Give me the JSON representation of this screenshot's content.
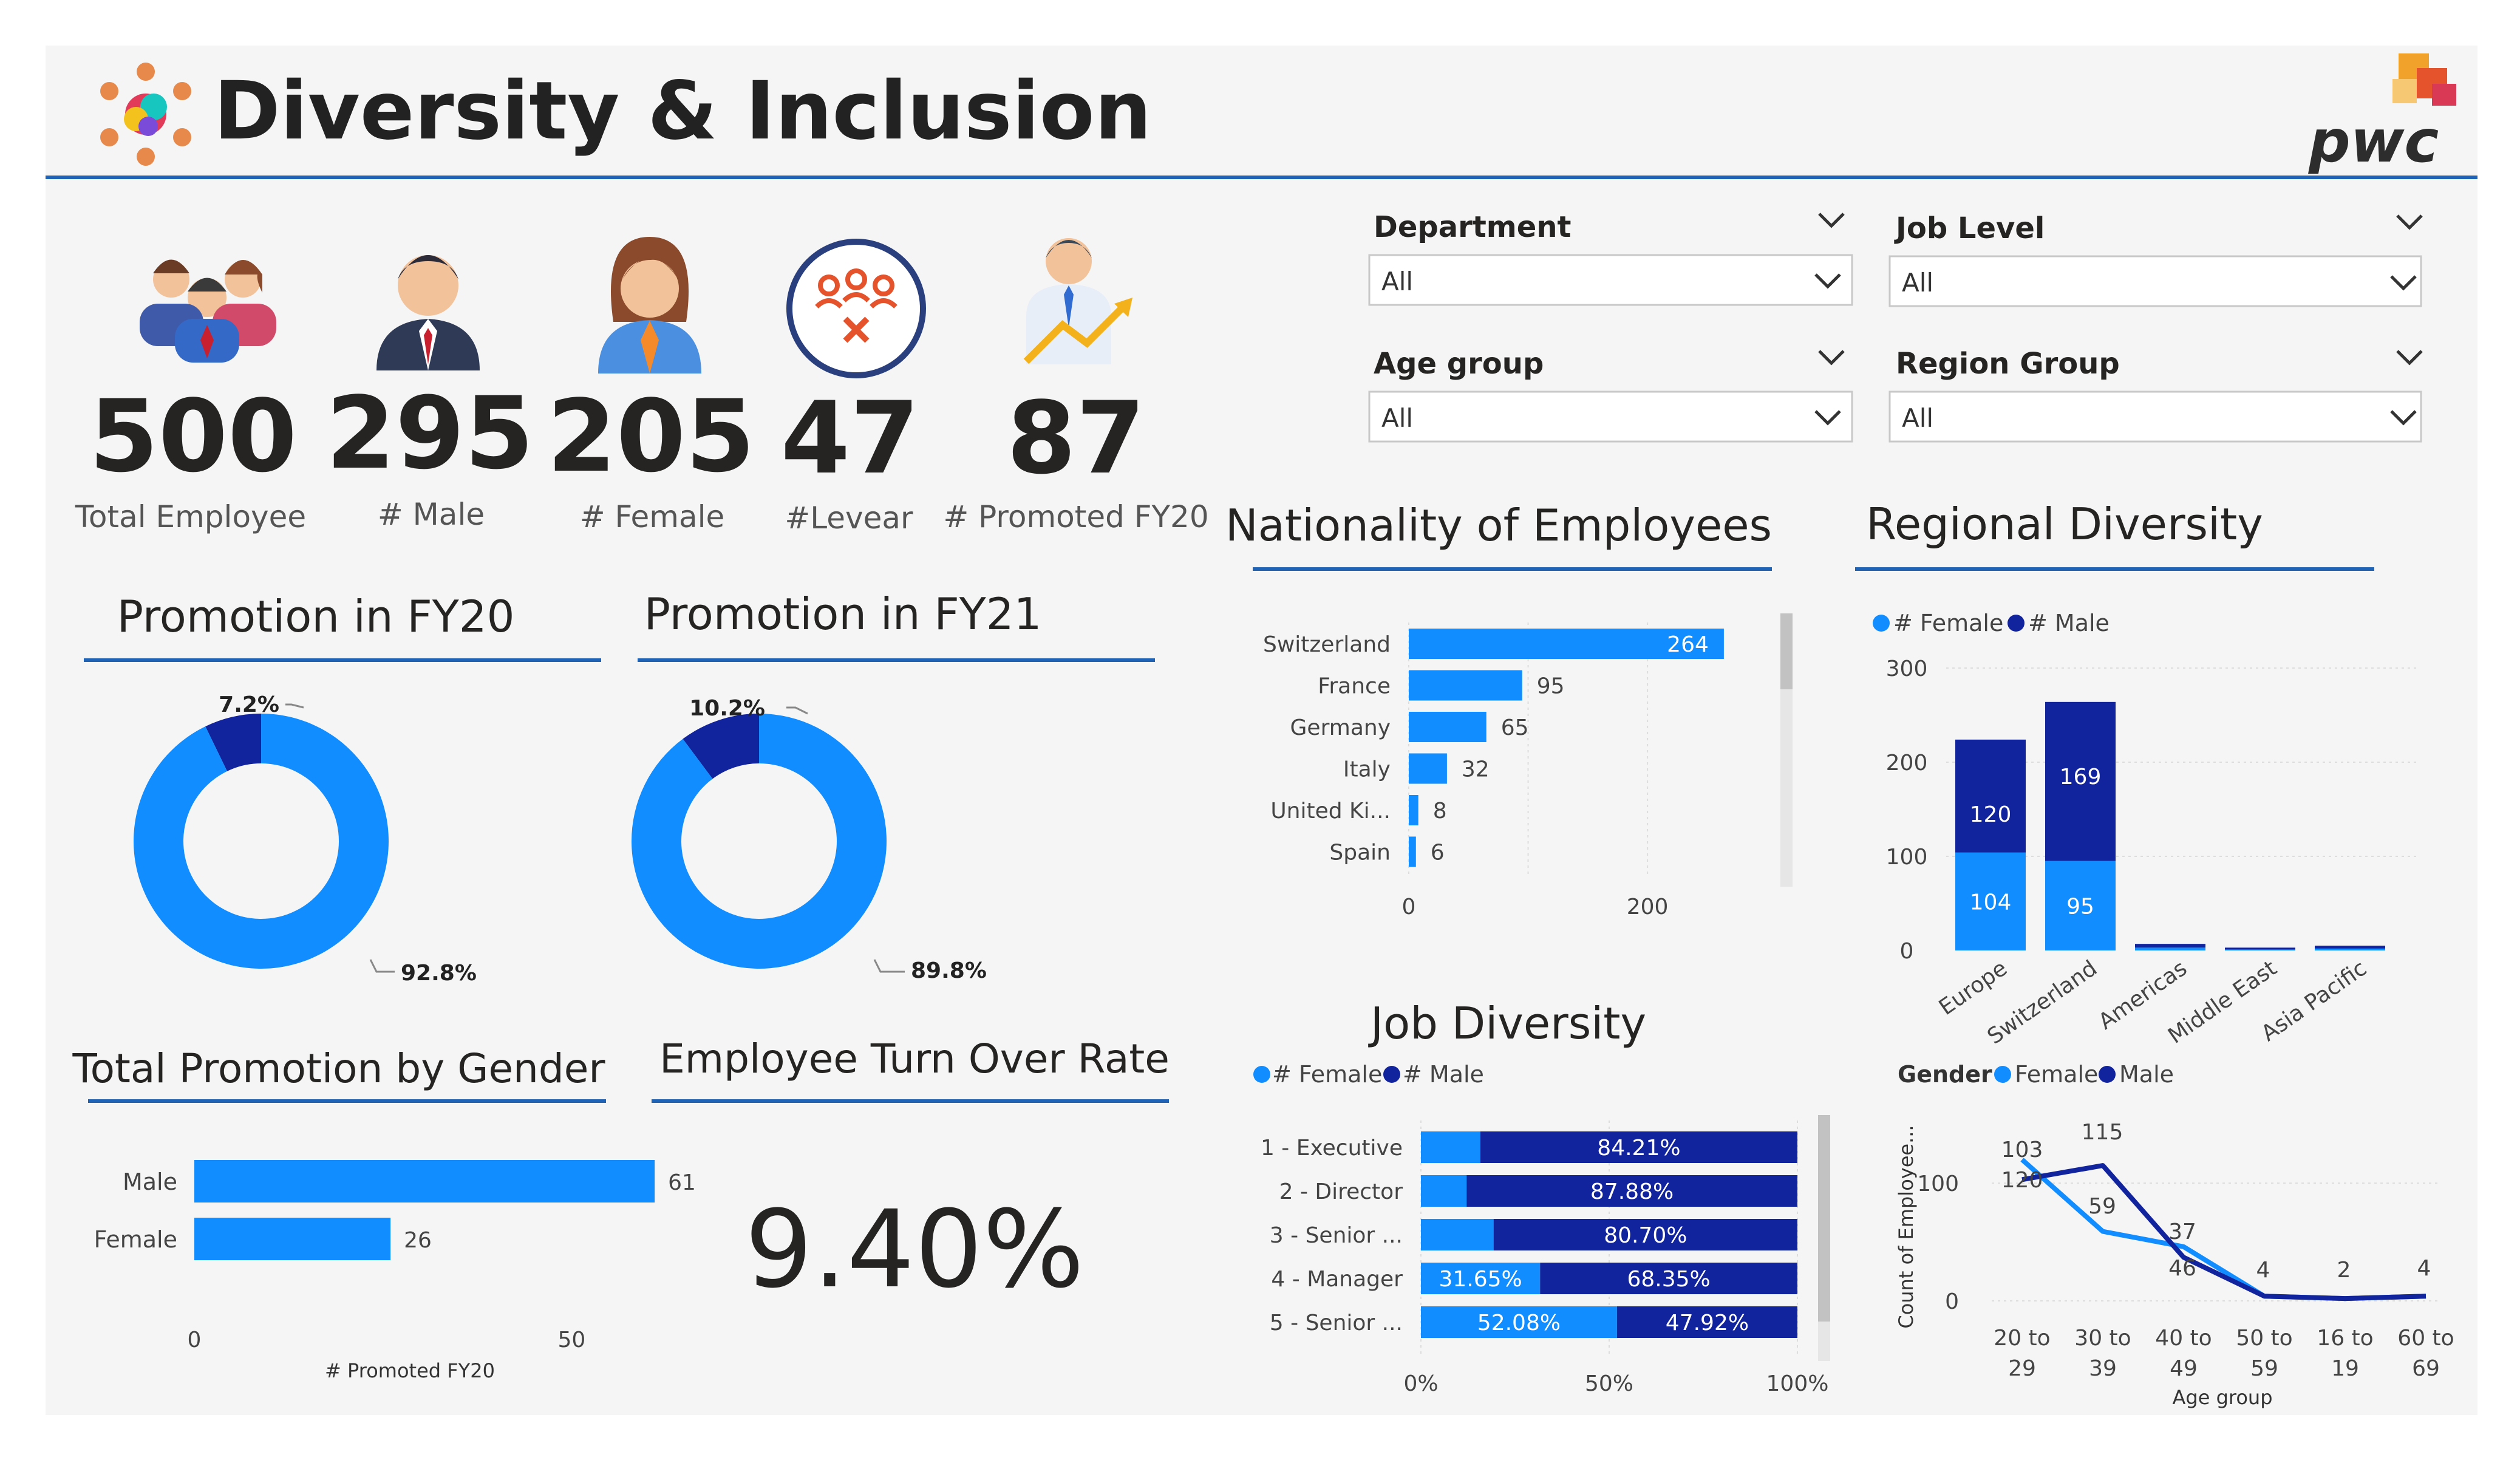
{
  "header": {
    "title": "Diversity & Inclusion",
    "logo_text": "pwc",
    "accent": "#1f63b6"
  },
  "colors": {
    "female": "#118DFF",
    "male": "#12239E",
    "panel": "#f5f5f5",
    "line": "#1f63b6"
  },
  "kpis": [
    {
      "value": "500",
      "label": "Total Employee",
      "icon": "group-people-icon"
    },
    {
      "value": "295",
      "label": "# Male",
      "icon": "male-person-icon"
    },
    {
      "value": "205",
      "label": "# Female",
      "icon": "female-person-icon"
    },
    {
      "value": "47",
      "label": "#Levear",
      "icon": "leaver-group-icon"
    },
    {
      "value": "87",
      "label": "# Promoted FY20",
      "icon": "promoted-person-icon"
    }
  ],
  "filters": [
    {
      "label": "Department",
      "value": "All"
    },
    {
      "label": "Job Level",
      "value": "All"
    },
    {
      "label": "Age group",
      "value": "All"
    },
    {
      "label": "Region Group",
      "value": "All"
    }
  ],
  "sections": {
    "promo_fy20": "Promotion in FY20",
    "promo_fy21": "Promotion in FY21",
    "total_promo_gender": "Total Promotion by Gender",
    "turnover": "Employee Turn Over Rate",
    "nationality": "Nationality of Employees",
    "regional": "Regional Diversity",
    "job": "Job Diversity"
  },
  "turnover_rate": "9.40%",
  "chart_data": [
    {
      "id": "promo_fy20",
      "type": "pie",
      "values": [
        7.2,
        92.8
      ],
      "labels": [
        "7.2%",
        "92.8%"
      ],
      "colors": [
        "#12239E",
        "#118DFF"
      ]
    },
    {
      "id": "promo_fy21",
      "type": "pie",
      "values": [
        10.2,
        89.8
      ],
      "labels": [
        "10.2%",
        "89.8%"
      ],
      "colors": [
        "#12239E",
        "#118DFF"
      ]
    },
    {
      "id": "promo_gender",
      "type": "bar",
      "orientation": "horizontal",
      "categories": [
        "Male",
        "Female"
      ],
      "values": [
        61,
        26
      ],
      "xlabel": "# Promoted FY20",
      "xticks": [
        "0",
        "50"
      ],
      "xlim": [
        0,
        70
      ]
    },
    {
      "id": "nationality",
      "type": "bar",
      "orientation": "horizontal",
      "categories": [
        "Switzerland",
        "France",
        "Germany",
        "Italy",
        "United Ki...",
        "Spain"
      ],
      "values": [
        264,
        95,
        65,
        32,
        8,
        6
      ],
      "xticks": [
        "0",
        "200"
      ],
      "xlim": [
        0,
        290
      ]
    },
    {
      "id": "regional",
      "type": "bar",
      "stacked": true,
      "legend": [
        "# Female",
        "# Male"
      ],
      "categories": [
        "Europe",
        "Switzerland",
        "Americas",
        "Middle East",
        "Asia Pacific"
      ],
      "series": [
        {
          "name": "# Female",
          "values": [
            104,
            95,
            3,
            1,
            2
          ]
        },
        {
          "name": "# Male",
          "values": [
            120,
            169,
            4,
            2,
            3
          ]
        }
      ],
      "yticks": [
        "0",
        "100",
        "200",
        "300"
      ],
      "ylim": [
        0,
        300
      ]
    },
    {
      "id": "job",
      "type": "bar",
      "orientation": "horizontal",
      "stacked": "100%",
      "legend": [
        "# Female",
        "# Male"
      ],
      "categories": [
        "1 - Executive",
        "2 - Director",
        "3 - Senior ...",
        "4 - Manager",
        "5 - Senior ..."
      ],
      "series": [
        {
          "name": "# Female",
          "values": [
            15.79,
            12.12,
            19.3,
            31.65,
            52.08
          ],
          "labels": [
            "",
            "",
            "",
            "31.65%",
            "52.08%"
          ]
        },
        {
          "name": "# Male",
          "values": [
            84.21,
            87.88,
            80.7,
            68.35,
            47.92
          ],
          "labels": [
            "84.21%",
            "87.88%",
            "80.70%",
            "68.35%",
            "47.92%"
          ]
        }
      ],
      "xticks": [
        "0%",
        "50%",
        "100%"
      ]
    },
    {
      "id": "age_line",
      "type": "line",
      "legend_title": "Gender",
      "legend": [
        "Female",
        "Male"
      ],
      "categories": [
        "20 to 29",
        "30 to 39",
        "40 to 49",
        "50 to 59",
        "16 to 19",
        "60 to 69"
      ],
      "series": [
        {
          "name": "Female",
          "values": [
            120,
            59,
            46,
            4,
            2,
            4
          ]
        },
        {
          "name": "Male",
          "values": [
            103,
            115,
            37,
            4,
            2,
            4
          ]
        }
      ],
      "point_labels": [
        "103",
        "120",
        "115",
        "59",
        "37",
        "46",
        "4",
        "2",
        "4"
      ],
      "xlabel": "Age group",
      "ylabel": "Count of Employee...",
      "yticks": [
        "0",
        "100"
      ],
      "ylim": [
        0,
        130
      ]
    }
  ]
}
